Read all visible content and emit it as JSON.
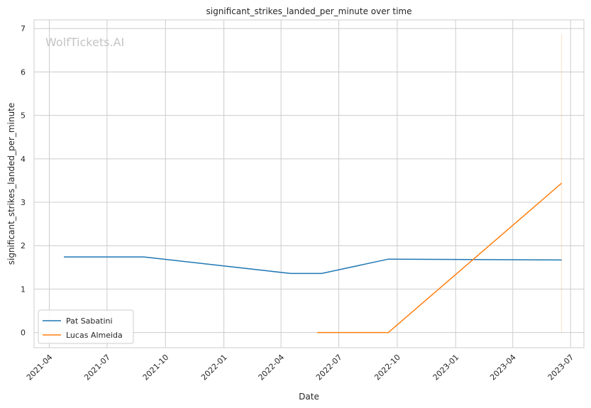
{
  "chart_data": {
    "type": "line",
    "title": "significant_strikes_landed_per_minute over time",
    "xlabel": "Date",
    "ylabel": "significant_strikes_landed_per_minute",
    "watermark": "WolfTickets.AI",
    "xlim": [
      "2021-03-08",
      "2023-07-22"
    ],
    "ylim": [
      -0.35,
      7.2
    ],
    "x_ticks": [
      "2021-04",
      "2021-07",
      "2021-10",
      "2022-01",
      "2022-04",
      "2022-07",
      "2022-10",
      "2023-01",
      "2023-04",
      "2023-07"
    ],
    "y_ticks": [
      "0",
      "1",
      "2",
      "3",
      "4",
      "5",
      "6",
      "7"
    ],
    "grid": true,
    "legend_position": "lower-left",
    "series": [
      {
        "name": "Pat Sabatini",
        "color": "#1f77b4",
        "x": [
          "2021-04-24",
          "2021-08-28",
          "2022-04-16",
          "2022-06-04",
          "2022-09-17",
          "2023-06-17"
        ],
        "y": [
          1.74,
          1.74,
          1.36,
          1.36,
          1.69,
          1.67
        ]
      },
      {
        "name": "Lucas Almeida",
        "color": "#ff7f0e",
        "x": [
          "2022-05-28",
          "2022-09-17",
          "2023-06-17"
        ],
        "y": [
          0.0,
          0.0,
          3.44
        ]
      }
    ],
    "annotations": [
      {
        "type": "vertical-line",
        "x": "2023-06-17",
        "y_range": [
          0,
          6.88
        ],
        "color": "#ff7f0e"
      }
    ]
  }
}
